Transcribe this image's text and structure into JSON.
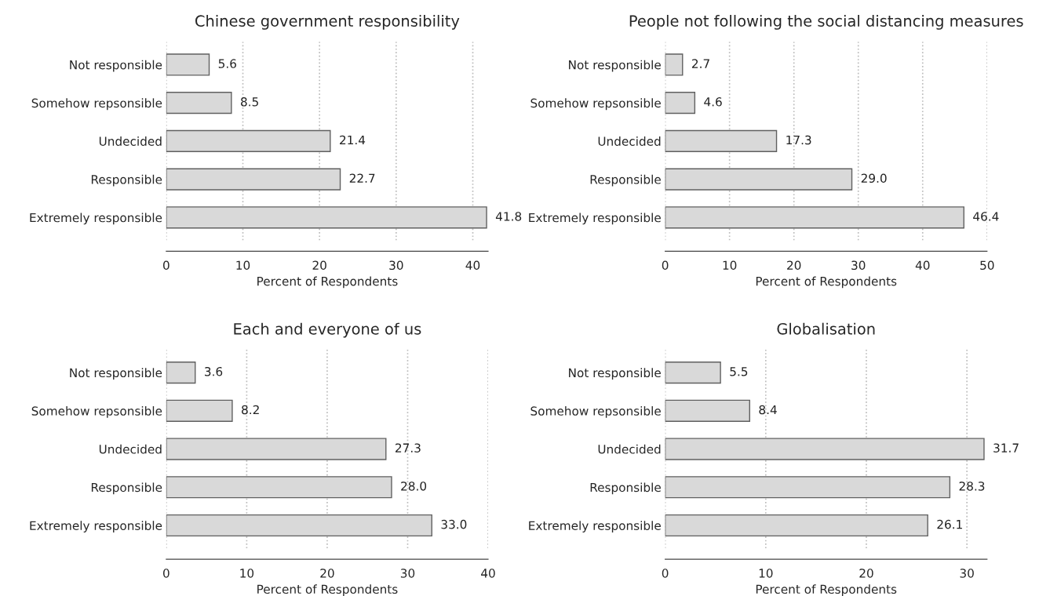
{
  "chart_data": [
    {
      "type": "bar",
      "orientation": "horizontal",
      "title": "Chinese government responsibility",
      "xlabel": "Percent of Respondents",
      "categories": [
        "Not responsible",
        "Somehow repsonsible",
        "Undecided",
        "Responsible",
        "Extremely responsible"
      ],
      "values": [
        5.6,
        8.5,
        21.4,
        22.7,
        41.8
      ],
      "value_labels": [
        "5.6",
        "8.5",
        "21.4",
        "22.7",
        "41.8"
      ],
      "color": "#d9d9d9",
      "xlim": [
        0,
        42
      ],
      "xticks": [
        0,
        10,
        20,
        30,
        40
      ],
      "grid": "x"
    },
    {
      "type": "bar",
      "orientation": "horizontal",
      "title": "People not following the social distancing measures",
      "xlabel": "Percent of Respondents",
      "categories": [
        "Not responsible",
        "Somehow repsonsible",
        "Undecided",
        "Responsible",
        "Extremely responsible"
      ],
      "values": [
        2.7,
        4.6,
        17.3,
        29,
        46.4
      ],
      "value_labels": [
        "2.7",
        "4.6",
        "17.3",
        "29.0",
        "46.4"
      ],
      "color": "#d9d9d9",
      "xlim": [
        0,
        50
      ],
      "xticks": [
        0,
        10,
        20,
        30,
        40,
        50
      ],
      "grid": "x"
    },
    {
      "type": "bar",
      "orientation": "horizontal",
      "title": "Each and everyone of us",
      "xlabel": "Percent of Respondents",
      "categories": [
        "Not responsible",
        "Somehow repsonsible",
        "Undecided",
        "Responsible",
        "Extremely responsible"
      ],
      "values": [
        3.6,
        8.2,
        27.3,
        28,
        33
      ],
      "value_labels": [
        "3.6",
        "8.2",
        "27.3",
        "28.0",
        "33.0"
      ],
      "color": "#d9d9d9",
      "xlim": [
        0,
        40
      ],
      "xticks": [
        0,
        10,
        20,
        30,
        40
      ],
      "grid": "x"
    },
    {
      "type": "bar",
      "orientation": "horizontal",
      "title": "Globalisation",
      "xlabel": "Percent of Respondents",
      "categories": [
        "Not responsible",
        "Somehow repsonsible",
        "Undecided",
        "Responsible",
        "Extremely responsible"
      ],
      "values": [
        5.5,
        8.4,
        31.7,
        28.3,
        26.1
      ],
      "value_labels": [
        "5.5",
        "8.4",
        "31.7",
        "28.3",
        "26.1"
      ],
      "color": "#d9d9d9",
      "xlim": [
        0,
        32
      ],
      "xticks": [
        0,
        10,
        20,
        30
      ],
      "grid": "x"
    }
  ]
}
